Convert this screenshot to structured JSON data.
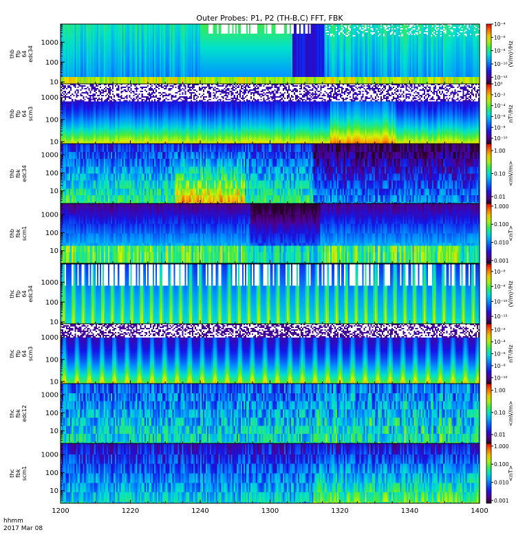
{
  "figure": {
    "title": "Outer Probes: P1, P2 (TH-B,C) FFT, FBK",
    "time_label_line1": "hhmm",
    "time_label_line2": "2017 Mar 08"
  },
  "chart_data": {
    "type": "heatmap",
    "x_axis": {
      "unit": "hhmm",
      "ticks": [
        "1200",
        "1220",
        "1240",
        "1300",
        "1320",
        "1340",
        "1400"
      ],
      "range_minutes": [
        0,
        120
      ]
    },
    "panels": [
      {
        "id": "thb-ffp-64-edc34",
        "ylabel_lines": [
          "thb",
          "ffp",
          "64",
          "edc34"
        ],
        "yscale": "log",
        "yrange": [
          8,
          8192
        ],
        "yticks": [
          10,
          100,
          1000
        ],
        "ytick_labels": [
          "10",
          "100",
          "1000"
        ],
        "colorbar": {
          "label": "(V/m)²/Hz",
          "scale": "log",
          "range": [
            1e-13,
            0.0001
          ],
          "tick_values": [
            0.0001,
            1e-06,
            1e-08,
            1e-10,
            1e-12
          ],
          "tick_labels": [
            "10⁻⁴",
            "10⁻⁶",
            "10⁻⁸",
            "10⁻¹⁰",
            "10⁻¹²"
          ]
        }
      },
      {
        "id": "thb-ffp-64-scm3",
        "ylabel_lines": [
          "thb",
          "ffp",
          "64",
          "scm3"
        ],
        "yscale": "log",
        "yrange": [
          8,
          4096
        ],
        "yticks": [
          10,
          100,
          1000
        ],
        "ytick_labels": [
          "10",
          "100",
          "1000"
        ],
        "colorbar": {
          "label": "nT²/Hz",
          "scale": "log",
          "range": [
            1e-11,
            1
          ],
          "tick_values": [
            1,
            0.01,
            0.0001,
            1e-06,
            1e-08,
            1e-10
          ],
          "tick_labels": [
            "10⁰",
            "10⁻²",
            "10⁻⁴",
            "10⁻⁶",
            "10⁻⁸",
            "10⁻¹⁰"
          ]
        }
      },
      {
        "id": "thb-fbk-edc34",
        "ylabel_lines": [
          "thb",
          "fbk",
          "edc34"
        ],
        "yscale": "log",
        "yrange": [
          2,
          4096
        ],
        "yticks": [
          10,
          100,
          1000
        ],
        "ytick_labels": [
          "10",
          "100",
          "1000"
        ],
        "colorbar": {
          "label": "<mV/m>",
          "scale": "log",
          "range": [
            0.005,
            2
          ],
          "tick_values": [
            1,
            0.1,
            0.01
          ],
          "tick_labels": [
            "1.00",
            "0.10",
            "0.01"
          ]
        }
      },
      {
        "id": "thb-fbk-scm1",
        "ylabel_lines": [
          "thb",
          "fbk",
          "scm1"
        ],
        "yscale": "log",
        "yrange": [
          2,
          4096
        ],
        "yticks": [
          10,
          100,
          1000
        ],
        "ytick_labels": [
          "10",
          "100",
          "1000"
        ],
        "colorbar": {
          "label": "<nT>",
          "scale": "log",
          "range": [
            0.0007,
            1.4
          ],
          "tick_values": [
            1,
            0.1,
            0.01,
            0.001
          ],
          "tick_labels": [
            "1.000",
            "0.100",
            "0.010",
            "0.001"
          ]
        }
      },
      {
        "id": "thc-ffp-64-edc34",
        "ylabel_lines": [
          "thc",
          "ffp",
          "64",
          "edc34"
        ],
        "yscale": "log",
        "yrange": [
          8,
          8192
        ],
        "yticks": [
          10,
          100,
          1000
        ],
        "ytick_labels": [
          "10",
          "100",
          "1000"
        ],
        "colorbar": {
          "label": "(V/m)²/Hz",
          "scale": "log",
          "range": [
            1e-13,
            1e-05
          ],
          "tick_values": [
            1e-06,
            1e-08,
            1e-10,
            1e-12
          ],
          "tick_labels": [
            "10⁻⁶",
            "10⁻⁸",
            "10⁻¹⁰",
            "10⁻¹²"
          ]
        }
      },
      {
        "id": "thc-ffp-64-scm3",
        "ylabel_lines": [
          "thc",
          "ffp",
          "64",
          "scm3"
        ],
        "yscale": "log",
        "yrange": [
          8,
          4096
        ],
        "yticks": [
          10,
          100,
          1000
        ],
        "ytick_labels": [
          "10",
          "100",
          "1000"
        ],
        "colorbar": {
          "label": "nT²/Hz",
          "scale": "log",
          "range": [
            1e-11,
            0.1
          ],
          "tick_values": [
            0.01,
            0.0001,
            1e-06,
            1e-08,
            1e-10
          ],
          "tick_labels": [
            "10⁻²",
            "10⁻⁴",
            "10⁻⁶",
            "10⁻⁸",
            "10⁻¹⁰"
          ]
        }
      },
      {
        "id": "thc-fbk-edc12",
        "ylabel_lines": [
          "thc",
          "fbk",
          "edc12"
        ],
        "yscale": "log",
        "yrange": [
          2,
          4096
        ],
        "yticks": [
          10,
          100,
          1000
        ],
        "ytick_labels": [
          "10",
          "100",
          "1000"
        ],
        "colorbar": {
          "label": "<mV/m>",
          "scale": "log",
          "range": [
            0.004,
            2
          ],
          "tick_values": [
            1,
            0.1,
            0.01
          ],
          "tick_labels": [
            "1.00",
            "0.10",
            "0.01"
          ]
        }
      },
      {
        "id": "thc-fbk-scm1",
        "ylabel_lines": [
          "thc",
          "fbk",
          "scm1"
        ],
        "yscale": "log",
        "yrange": [
          2,
          4096
        ],
        "yticks": [
          10,
          100,
          1000
        ],
        "ytick_labels": [
          "10",
          "100",
          "1000"
        ],
        "colorbar": {
          "label": "<nT>",
          "scale": "log",
          "range": [
            0.0007,
            1.4
          ],
          "tick_values": [
            1,
            0.1,
            0.01,
            0.001
          ],
          "tick_labels": [
            "1.000",
            "0.100",
            "0.010",
            "0.001"
          ]
        }
      }
    ]
  }
}
